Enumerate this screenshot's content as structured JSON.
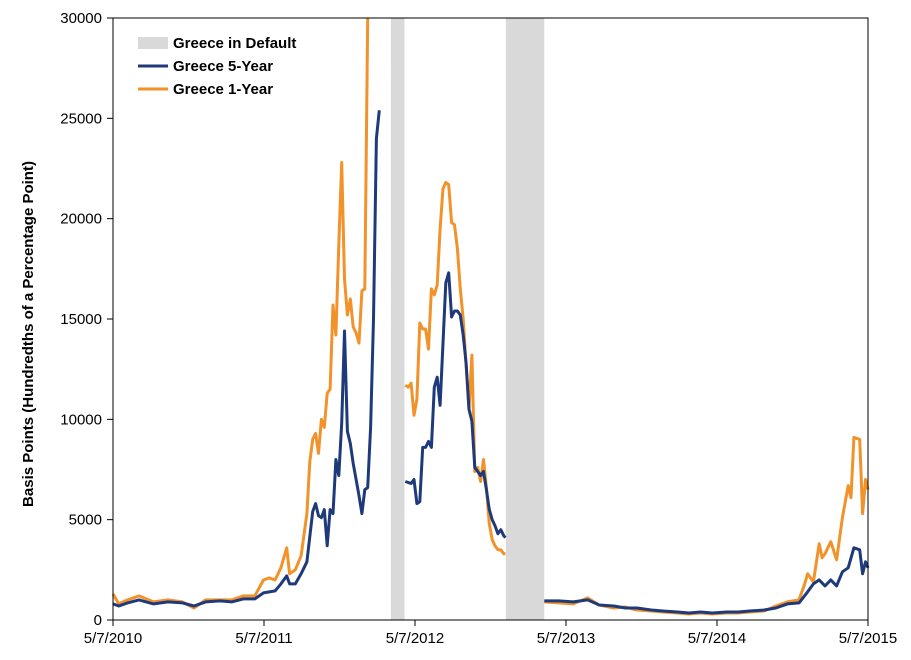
{
  "chart_data": {
    "type": "line",
    "title": "",
    "xlabel": "",
    "ylabel": "Basis Points (Hundredths of a Percentage Point)",
    "x_ticks": [
      "5/7/2010",
      "5/7/2011",
      "5/7/2012",
      "5/7/2013",
      "5/7/2014",
      "5/7/2015"
    ],
    "x_range": [
      "2010-05-07",
      "2015-05-07"
    ],
    "ylim": [
      0,
      30000
    ],
    "y_ticks": [
      0,
      5000,
      10000,
      15000,
      20000,
      25000,
      30000
    ],
    "grid": false,
    "legend_position": "top-left",
    "shaded_regions": {
      "name": "Greece in Default",
      "color": "#d9d9d9",
      "periods": [
        {
          "start": "2012-03-09",
          "end": "2012-04-11"
        },
        {
          "start": "2012-12-12",
          "end": "2013-03-15"
        }
      ]
    },
    "series": [
      {
        "name": "Greece 5-Year",
        "color": "#1f3a7a",
        "points": [
          [
            "2010-05-07",
            800
          ],
          [
            "2010-05-21",
            700
          ],
          [
            "2010-06-11",
            850
          ],
          [
            "2010-07-09",
            1000
          ],
          [
            "2010-08-13",
            800
          ],
          [
            "2010-09-17",
            900
          ],
          [
            "2010-10-22",
            850
          ],
          [
            "2010-11-19",
            700
          ],
          [
            "2010-12-17",
            900
          ],
          [
            "2011-01-21",
            950
          ],
          [
            "2011-02-18",
            900
          ],
          [
            "2011-03-18",
            1050
          ],
          [
            "2011-04-15",
            1050
          ],
          [
            "2011-05-06",
            1350
          ],
          [
            "2011-05-20",
            1400
          ],
          [
            "2011-06-03",
            1450
          ],
          [
            "2011-06-17",
            1800
          ],
          [
            "2011-07-01",
            2200
          ],
          [
            "2011-07-08",
            1800
          ],
          [
            "2011-07-22",
            1800
          ],
          [
            "2011-08-05",
            2300
          ],
          [
            "2011-08-19",
            2900
          ],
          [
            "2011-09-02",
            5400
          ],
          [
            "2011-09-09",
            5800
          ],
          [
            "2011-09-16",
            5200
          ],
          [
            "2011-09-23",
            5100
          ],
          [
            "2011-09-30",
            5500
          ],
          [
            "2011-10-07",
            3700
          ],
          [
            "2011-10-14",
            5500
          ],
          [
            "2011-10-21",
            5300
          ],
          [
            "2011-10-28",
            8000
          ],
          [
            "2011-11-04",
            7200
          ],
          [
            "2011-11-11",
            9800
          ],
          [
            "2011-11-18",
            14400
          ],
          [
            "2011-11-25",
            9400
          ],
          [
            "2011-12-02",
            8800
          ],
          [
            "2011-12-09",
            7800
          ],
          [
            "2011-12-16",
            7000
          ],
          [
            "2011-12-23",
            6200
          ],
          [
            "2011-12-30",
            5300
          ],
          [
            "2012-01-06",
            6500
          ],
          [
            "2012-01-13",
            6600
          ],
          [
            "2012-01-20",
            9600
          ],
          [
            "2012-01-27",
            15000
          ],
          [
            "2012-02-03",
            24000
          ],
          [
            "2012-02-10",
            25400
          ],
          [
            "2012-04-13",
            6900
          ],
          [
            "2012-04-27",
            6800
          ],
          [
            "2012-05-04",
            7000
          ],
          [
            "2012-05-11",
            5800
          ],
          [
            "2012-05-18",
            5900
          ],
          [
            "2012-05-25",
            8600
          ],
          [
            "2012-06-01",
            8600
          ],
          [
            "2012-06-08",
            8900
          ],
          [
            "2012-06-15",
            8600
          ],
          [
            "2012-06-22",
            11600
          ],
          [
            "2012-06-29",
            12100
          ],
          [
            "2012-07-06",
            10700
          ],
          [
            "2012-07-13",
            13800
          ],
          [
            "2012-07-20",
            16800
          ],
          [
            "2012-07-27",
            17300
          ],
          [
            "2012-08-03",
            15100
          ],
          [
            "2012-08-10",
            15400
          ],
          [
            "2012-08-17",
            15400
          ],
          [
            "2012-08-24",
            15200
          ],
          [
            "2012-08-31",
            14200
          ],
          [
            "2012-09-07",
            12800
          ],
          [
            "2012-09-14",
            10500
          ],
          [
            "2012-09-21",
            9900
          ],
          [
            "2012-09-28",
            7600
          ],
          [
            "2012-10-05",
            7400
          ],
          [
            "2012-10-12",
            7200
          ],
          [
            "2012-10-19",
            7400
          ],
          [
            "2012-10-26",
            6500
          ],
          [
            "2012-11-02",
            5500
          ],
          [
            "2012-11-09",
            5000
          ],
          [
            "2012-11-16",
            4700
          ],
          [
            "2012-11-23",
            4300
          ],
          [
            "2012-11-30",
            4500
          ],
          [
            "2012-12-07",
            4200
          ],
          [
            "2012-12-11",
            4100
          ],
          [
            "2013-03-15",
            950
          ],
          [
            "2013-04-19",
            950
          ],
          [
            "2013-05-24",
            900
          ],
          [
            "2013-06-28",
            1000
          ],
          [
            "2013-07-26",
            750
          ],
          [
            "2013-08-30",
            700
          ],
          [
            "2013-09-27",
            600
          ],
          [
            "2013-10-25",
            600
          ],
          [
            "2013-11-29",
            500
          ],
          [
            "2013-12-27",
            450
          ],
          [
            "2014-01-31",
            400
          ],
          [
            "2014-02-28",
            350
          ],
          [
            "2014-03-28",
            400
          ],
          [
            "2014-04-25",
            350
          ],
          [
            "2014-05-30",
            400
          ],
          [
            "2014-06-27",
            400
          ],
          [
            "2014-07-25",
            450
          ],
          [
            "2014-08-29",
            500
          ],
          [
            "2014-09-26",
            600
          ],
          [
            "2014-10-24",
            800
          ],
          [
            "2014-11-21",
            850
          ],
          [
            "2014-12-12",
            1400
          ],
          [
            "2014-12-26",
            1800
          ],
          [
            "2015-01-09",
            2000
          ],
          [
            "2015-01-23",
            1700
          ],
          [
            "2015-02-06",
            2000
          ],
          [
            "2015-02-20",
            1700
          ],
          [
            "2015-03-06",
            2400
          ],
          [
            "2015-03-20",
            2600
          ],
          [
            "2015-04-03",
            3600
          ],
          [
            "2015-04-17",
            3500
          ],
          [
            "2015-04-24",
            2300
          ],
          [
            "2015-05-01",
            2900
          ],
          [
            "2015-05-07",
            2600
          ]
        ]
      },
      {
        "name": "Greece 1-Year",
        "color": "#f2922a",
        "points": [
          [
            "2010-05-07",
            1300
          ],
          [
            "2010-05-21",
            800
          ],
          [
            "2010-06-11",
            1000
          ],
          [
            "2010-07-09",
            1200
          ],
          [
            "2010-08-13",
            900
          ],
          [
            "2010-09-17",
            1000
          ],
          [
            "2010-10-22",
            900
          ],
          [
            "2010-11-19",
            600
          ],
          [
            "2010-12-17",
            1000
          ],
          [
            "2011-01-21",
            1000
          ],
          [
            "2011-02-18",
            1000
          ],
          [
            "2011-03-18",
            1200
          ],
          [
            "2011-04-15",
            1200
          ],
          [
            "2011-05-06",
            2000
          ],
          [
            "2011-05-20",
            2100
          ],
          [
            "2011-06-03",
            2000
          ],
          [
            "2011-06-17",
            2600
          ],
          [
            "2011-07-01",
            3600
          ],
          [
            "2011-07-08",
            2300
          ],
          [
            "2011-07-22",
            2500
          ],
          [
            "2011-08-05",
            3200
          ],
          [
            "2011-08-19",
            5300
          ],
          [
            "2011-08-26",
            7900
          ],
          [
            "2011-09-02",
            9000
          ],
          [
            "2011-09-09",
            9300
          ],
          [
            "2011-09-16",
            8300
          ],
          [
            "2011-09-23",
            10000
          ],
          [
            "2011-09-30",
            9600
          ],
          [
            "2011-10-07",
            11300
          ],
          [
            "2011-10-14",
            11500
          ],
          [
            "2011-10-21",
            15700
          ],
          [
            "2011-10-28",
            14200
          ],
          [
            "2011-11-04",
            18700
          ],
          [
            "2011-11-11",
            22800
          ],
          [
            "2011-11-18",
            17000
          ],
          [
            "2011-11-25",
            15200
          ],
          [
            "2011-12-02",
            16000
          ],
          [
            "2011-12-09",
            14600
          ],
          [
            "2011-12-16",
            14300
          ],
          [
            "2011-12-23",
            13800
          ],
          [
            "2011-12-30",
            16400
          ],
          [
            "2012-01-06",
            16500
          ],
          [
            "2012-01-13",
            30000
          ],
          [
            "2012-04-13",
            11700
          ],
          [
            "2012-04-20",
            11600
          ],
          [
            "2012-04-27",
            11800
          ],
          [
            "2012-05-04",
            10200
          ],
          [
            "2012-05-11",
            11000
          ],
          [
            "2012-05-18",
            14800
          ],
          [
            "2012-05-25",
            14500
          ],
          [
            "2012-06-01",
            14500
          ],
          [
            "2012-06-08",
            13500
          ],
          [
            "2012-06-15",
            16500
          ],
          [
            "2012-06-22",
            16200
          ],
          [
            "2012-06-29",
            16700
          ],
          [
            "2012-07-06",
            19500
          ],
          [
            "2012-07-13",
            21500
          ],
          [
            "2012-07-20",
            21800
          ],
          [
            "2012-07-27",
            21700
          ],
          [
            "2012-08-03",
            19800
          ],
          [
            "2012-08-10",
            19700
          ],
          [
            "2012-08-17",
            18500
          ],
          [
            "2012-08-24",
            16500
          ],
          [
            "2012-08-31",
            15000
          ],
          [
            "2012-09-07",
            12700
          ],
          [
            "2012-09-14",
            10500
          ],
          [
            "2012-09-21",
            13200
          ],
          [
            "2012-09-28",
            7400
          ],
          [
            "2012-10-05",
            7600
          ],
          [
            "2012-10-12",
            6900
          ],
          [
            "2012-10-19",
            8000
          ],
          [
            "2012-10-26",
            6600
          ],
          [
            "2012-11-02",
            4800
          ],
          [
            "2012-11-09",
            4000
          ],
          [
            "2012-11-16",
            3700
          ],
          [
            "2012-11-23",
            3500
          ],
          [
            "2012-11-30",
            3500
          ],
          [
            "2012-12-07",
            3300
          ],
          [
            "2012-12-11",
            3300
          ],
          [
            "2013-03-15",
            900
          ],
          [
            "2013-04-19",
            850
          ],
          [
            "2013-05-24",
            800
          ],
          [
            "2013-06-28",
            1100
          ],
          [
            "2013-07-26",
            750
          ],
          [
            "2013-08-30",
            600
          ],
          [
            "2013-09-27",
            650
          ],
          [
            "2013-10-25",
            500
          ],
          [
            "2013-11-29",
            450
          ],
          [
            "2013-12-27",
            400
          ],
          [
            "2014-01-31",
            350
          ],
          [
            "2014-02-28",
            300
          ],
          [
            "2014-03-28",
            350
          ],
          [
            "2014-04-25",
            300
          ],
          [
            "2014-05-30",
            350
          ],
          [
            "2014-06-27",
            350
          ],
          [
            "2014-07-25",
            400
          ],
          [
            "2014-08-29",
            450
          ],
          [
            "2014-09-26",
            700
          ],
          [
            "2014-10-24",
            900
          ],
          [
            "2014-11-21",
            1000
          ],
          [
            "2014-12-05",
            1800
          ],
          [
            "2014-12-12",
            2300
          ],
          [
            "2014-12-26",
            1900
          ],
          [
            "2015-01-09",
            3800
          ],
          [
            "2015-01-16",
            3100
          ],
          [
            "2015-01-23",
            3300
          ],
          [
            "2015-02-06",
            3900
          ],
          [
            "2015-02-20",
            3000
          ],
          [
            "2015-03-06",
            5100
          ],
          [
            "2015-03-20",
            6700
          ],
          [
            "2015-03-27",
            6100
          ],
          [
            "2015-04-03",
            9100
          ],
          [
            "2015-04-17",
            9000
          ],
          [
            "2015-04-24",
            5300
          ],
          [
            "2015-05-01",
            7000
          ],
          [
            "2015-05-07",
            6500
          ]
        ]
      }
    ]
  }
}
